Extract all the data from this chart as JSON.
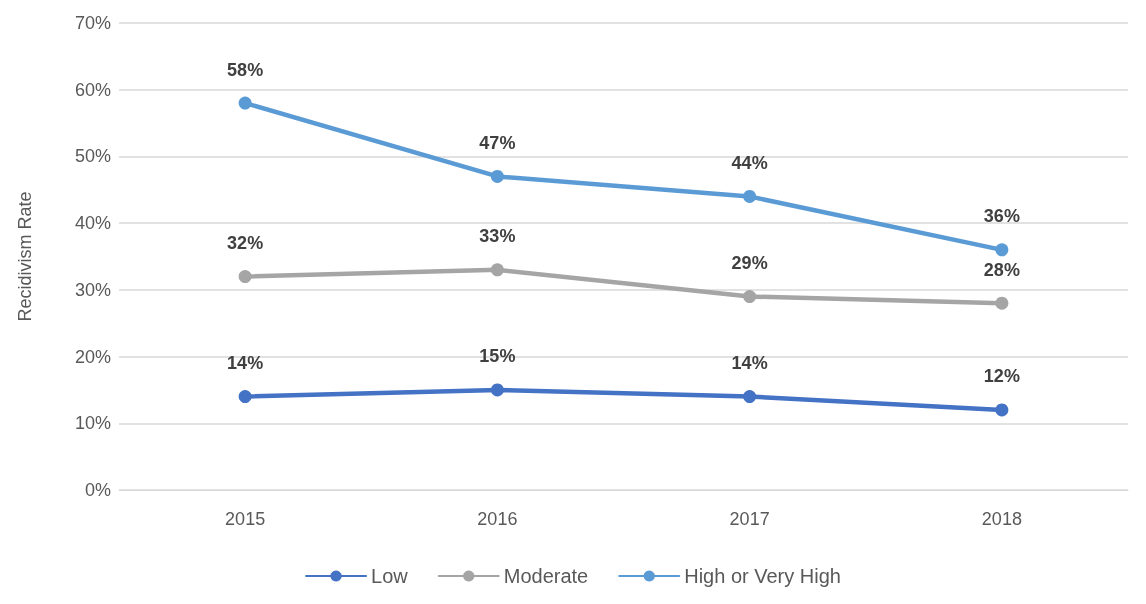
{
  "chart_data": {
    "type": "line",
    "ylabel": "Recidivism Rate",
    "categories": [
      "2015",
      "2016",
      "2017",
      "2018"
    ],
    "series": [
      {
        "name": "Low",
        "color": "#4472c4",
        "values": [
          14,
          15,
          14,
          12
        ],
        "value_labels": [
          "14%",
          "15%",
          "14%",
          "12%"
        ]
      },
      {
        "name": "Moderate",
        "color": "#a5a5a5",
        "values": [
          32,
          33,
          29,
          28
        ],
        "value_labels": [
          "32%",
          "33%",
          "29%",
          "28%"
        ]
      },
      {
        "name": "High or Very High",
        "color": "#5b9bd5",
        "values": [
          58,
          47,
          44,
          36
        ],
        "value_labels": [
          "58%",
          "47%",
          "44%",
          "36%"
        ]
      }
    ],
    "ylim": [
      0,
      70
    ],
    "yticks": [
      {
        "value": 0,
        "label": "0%"
      },
      {
        "value": 10,
        "label": "10%"
      },
      {
        "value": 20,
        "label": "20%"
      },
      {
        "value": 30,
        "label": "30%"
      },
      {
        "value": 40,
        "label": "40%"
      },
      {
        "value": 50,
        "label": "50%"
      },
      {
        "value": 60,
        "label": "60%"
      },
      {
        "value": 70,
        "label": "70%"
      }
    ],
    "grid": "y",
    "legend": "bottom",
    "marker": "circle",
    "line_style": "solid"
  }
}
